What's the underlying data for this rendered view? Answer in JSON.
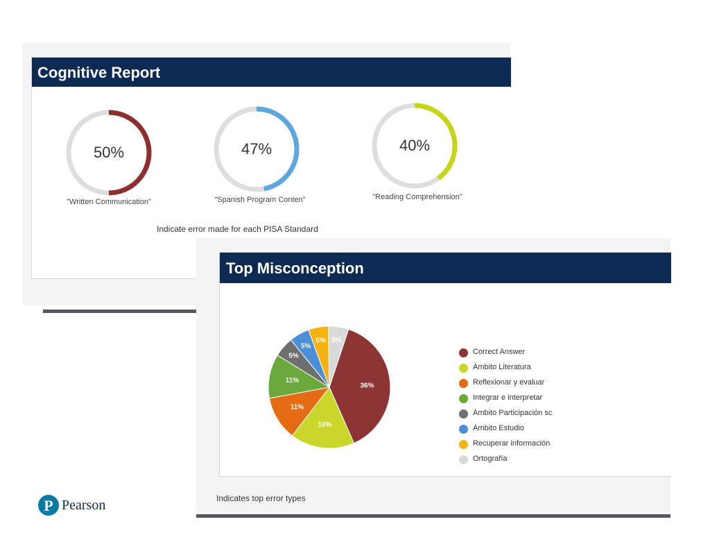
{
  "cognitive_report": {
    "title": "Cognitive Report",
    "caption": "Indicate error made for each PISA Standard",
    "gauges": [
      {
        "value": 50,
        "label_text": "50%",
        "label": "\"Written Communication\"",
        "color": "#8c2f2f"
      },
      {
        "value": 47,
        "label_text": "47%",
        "label": "\"Spanish Program Conten\"",
        "color": "#5da6de"
      },
      {
        "value": 40,
        "label_text": "40%",
        "label": "\"Reading Comprehension\"",
        "color": "#c6d41a"
      }
    ]
  },
  "top_misconception": {
    "title": "Top Misconception",
    "caption": "Indicates top error types"
  },
  "chart_data": {
    "type": "pie",
    "title": "",
    "slices": [
      {
        "label": "Correct Answer",
        "value": 36,
        "display": "36%",
        "color": "#8c3534"
      },
      {
        "label": "Ámbito Literatura",
        "value": 16,
        "display": "16%",
        "color": "#cbd62b"
      },
      {
        "label": "Reflexionar y evaluar",
        "value": 11,
        "display": "11%",
        "color": "#e36b12"
      },
      {
        "label": "Integrar e interpretar",
        "value": 11,
        "display": "11%",
        "color": "#6aaa3c"
      },
      {
        "label": "Ámbito Participación sc",
        "value": 5,
        "display": "5%",
        "color": "#6f6f6f"
      },
      {
        "label": "Ámbito Estudio",
        "value": 5,
        "display": "5%",
        "color": "#4d8fd6"
      },
      {
        "label": "Recuperar información",
        "value": 5,
        "display": "5%",
        "color": "#f5b312"
      },
      {
        "label": "Ortografía",
        "value": 5,
        "display": "5%",
        "color": "#d9d9d9"
      }
    ],
    "legend_position": "right"
  },
  "logo": {
    "brand": "Pearson",
    "mark": "P"
  }
}
